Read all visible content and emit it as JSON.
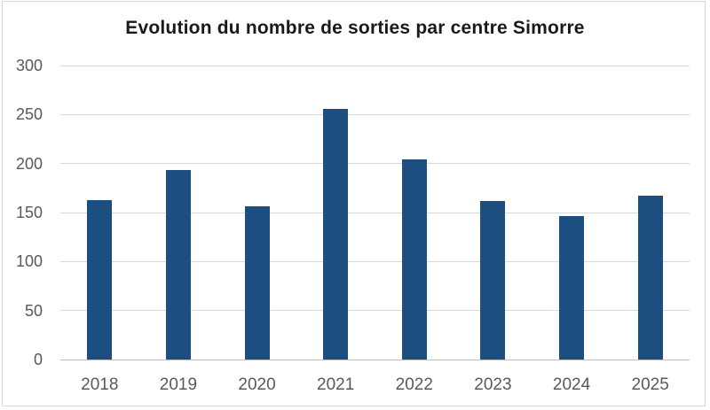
{
  "chart_data": {
    "type": "bar",
    "title": "Evolution du nombre de sorties par centre Simorre",
    "categories": [
      "2018",
      "2019",
      "2020",
      "2021",
      "2022",
      "2023",
      "2024",
      "2025"
    ],
    "values": [
      163,
      193,
      156,
      256,
      204,
      162,
      146,
      167
    ],
    "xlabel": "",
    "ylabel": "",
    "ylim": [
      0,
      300
    ],
    "yticks": [
      0,
      50,
      100,
      150,
      200,
      250,
      300
    ],
    "grid": true,
    "legend": "none",
    "colors": {
      "bar": "#1C4E80",
      "gridline": "#D9D9D9",
      "axis_line": "#BFBFBF",
      "tick_label": "#595959",
      "title": "#1A1A1A",
      "background": "#FFFFFF",
      "frame_border": "#D9D9D9"
    }
  }
}
